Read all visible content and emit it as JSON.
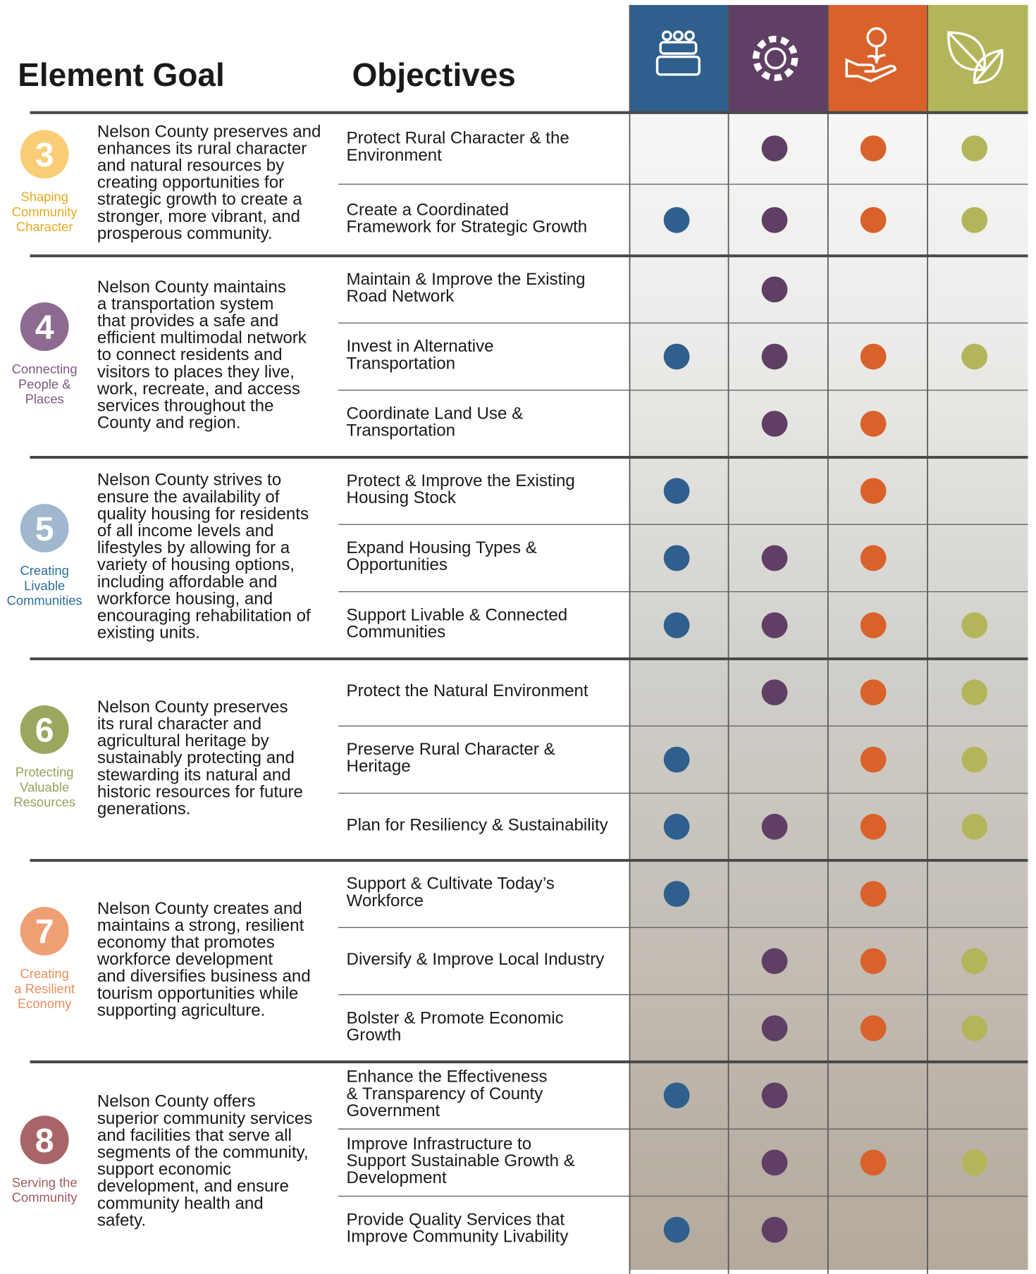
{
  "header": {
    "goal_title": "Element Goal",
    "objectives_title": "Objectives"
  },
  "columns": [
    {
      "color": "#2f5f8c"
    },
    {
      "color": "#5f3f64"
    },
    {
      "color": "#d9622b"
    },
    {
      "color": "#b3b55a"
    }
  ],
  "goals": [
    {
      "number": 3,
      "circle_color": "#f9cd75",
      "label_color": "#e9a91f",
      "label": [
        "Shaping",
        "Community",
        "Character"
      ],
      "description": [
        "Nelson County preserves and",
        "enhances its rural character",
        "and natural resources by",
        "creating opportunities for",
        "strategic growth to create a",
        "stronger, more vibrant, and",
        "prosperous community."
      ],
      "objectives": [
        {
          "title": [
            "Protect Rural Character & the",
            "Environment"
          ],
          "dots": [
            false,
            true,
            true,
            true
          ]
        },
        {
          "title": [
            "Create a Coordinated",
            "Framework for Strategic Growth"
          ],
          "dots": [
            true,
            true,
            true,
            true
          ]
        }
      ]
    },
    {
      "number": 4,
      "circle_color": "#8d6b90",
      "label_color": "#7a5a7e",
      "label": [
        "Connecting",
        "People &",
        "Places"
      ],
      "description": [
        "Nelson County maintains",
        "a transportation system",
        "that provides a safe and",
        "efficient multimodal network",
        "to connect residents and",
        "visitors to places they live,",
        "work, recreate, and access",
        "services throughout the",
        "County and region."
      ],
      "objectives": [
        {
          "title": [
            "Maintain & Improve the Existing",
            "Road Network"
          ],
          "dots": [
            false,
            true,
            false,
            false
          ]
        },
        {
          "title": [
            "Invest in Alternative",
            "Transportation"
          ],
          "dots": [
            true,
            true,
            true,
            true
          ]
        },
        {
          "title": [
            "Coordinate Land Use &",
            "Transportation"
          ],
          "dots": [
            false,
            true,
            true,
            false
          ]
        }
      ]
    },
    {
      "number": 5,
      "circle_color": "#a0b8cd",
      "label_color": "#2e6e9a",
      "label": [
        "Creating",
        "Livable",
        "Communities"
      ],
      "description": [
        "Nelson County strives to",
        "ensure the availability of",
        "quality housing for residents",
        "of all income levels and",
        "lifestyles by allowing for a",
        "variety of housing options,",
        "including affordable and",
        "workforce housing, and",
        "encouraging rehabilitation of",
        "existing units."
      ],
      "objectives": [
        {
          "title": [
            "Protect & Improve the Existing",
            "Housing Stock"
          ],
          "dots": [
            true,
            false,
            true,
            false
          ]
        },
        {
          "title": [
            "Expand Housing Types &",
            "Opportunities"
          ],
          "dots": [
            true,
            true,
            true,
            false
          ]
        },
        {
          "title": [
            "Support Livable & Connected",
            "Communities"
          ],
          "dots": [
            true,
            true,
            true,
            true
          ]
        }
      ]
    },
    {
      "number": 6,
      "circle_color": "#9ba65f",
      "label_color": "#9aa05a",
      "label": [
        "Protecting",
        "Valuable",
        "Resources"
      ],
      "description": [
        "Nelson County preserves",
        "its rural character and",
        "agricultural heritage by",
        "sustainably protecting and",
        "stewarding its natural and",
        "historic resources for future",
        "generations."
      ],
      "objectives": [
        {
          "title": [
            "Protect the Natural Environment"
          ],
          "dots": [
            false,
            true,
            true,
            true
          ]
        },
        {
          "title": [
            "Preserve Rural Character &",
            "Heritage"
          ],
          "dots": [
            true,
            false,
            true,
            true
          ]
        },
        {
          "title": [
            "Plan for Resiliency & Sustainability"
          ],
          "dots": [
            true,
            true,
            true,
            true
          ]
        }
      ]
    },
    {
      "number": 7,
      "circle_color": "#ef9f74",
      "label_color": "#e88d5c",
      "label": [
        "Creating",
        "a Resilient",
        "Economy"
      ],
      "description": [
        "Nelson County creates and",
        "maintains a strong, resilient",
        "economy that promotes",
        "workforce development",
        "and diversifies business and",
        "tourism opportunities while",
        "supporting agriculture."
      ],
      "objectives": [
        {
          "title": [
            "Support & Cultivate Today’s",
            "Workforce"
          ],
          "dots": [
            true,
            false,
            true,
            false
          ]
        },
        {
          "title": [
            "Diversify & Improve Local Industry"
          ],
          "dots": [
            false,
            true,
            true,
            true
          ]
        },
        {
          "title": [
            "Bolster & Promote Economic",
            "Growth"
          ],
          "dots": [
            false,
            true,
            true,
            true
          ]
        }
      ]
    },
    {
      "number": 8,
      "circle_color": "#a86567",
      "label_color": "#a05a5c",
      "label": [
        "Serving the",
        "Community"
      ],
      "description": [
        "Nelson County offers",
        "superior community services",
        "and facilities that serve all",
        "segments of the community,",
        "support economic",
        "development, and ensure",
        "community health and",
        "safety."
      ],
      "objectives": [
        {
          "title": [
            "Enhance the Effectiveness",
            "& Transparency of County",
            "Government"
          ],
          "dots": [
            true,
            true,
            false,
            false
          ]
        },
        {
          "title": [
            "Improve Infrastructure to",
            "Support Sustainable Growth &",
            "Development"
          ],
          "dots": [
            false,
            true,
            true,
            true
          ]
        },
        {
          "title": [
            "Provide Quality Services that",
            "Improve Community Livability"
          ],
          "dots": [
            true,
            true,
            false,
            false
          ]
        }
      ]
    }
  ]
}
